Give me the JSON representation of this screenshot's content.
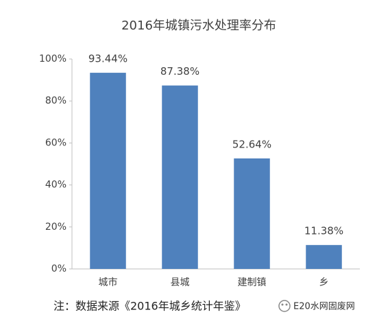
{
  "chart_data": {
    "type": "bar",
    "title": "2016年城镇污水处理率分布",
    "categories": [
      "城市",
      "县城",
      "建制镇",
      "乡"
    ],
    "values": [
      93.44,
      87.38,
      52.64,
      11.38
    ],
    "value_labels": [
      "93.44%",
      "87.38%",
      "52.64%",
      "11.38%"
    ],
    "color": "#4f81bd",
    "ylim": [
      0,
      100
    ],
    "yticks": [
      {
        "value": 0,
        "label": "0%"
      },
      {
        "value": 20,
        "label": "20%"
      },
      {
        "value": 40,
        "label": "40%"
      },
      {
        "value": 60,
        "label": "60%"
      },
      {
        "value": 80,
        "label": "80%"
      },
      {
        "value": 100,
        "label": "100%"
      }
    ],
    "grid": false
  },
  "footer": {
    "note": "注：数据来源《2016年城乡统计年鉴》",
    "watermark": "E20水网固废网"
  }
}
